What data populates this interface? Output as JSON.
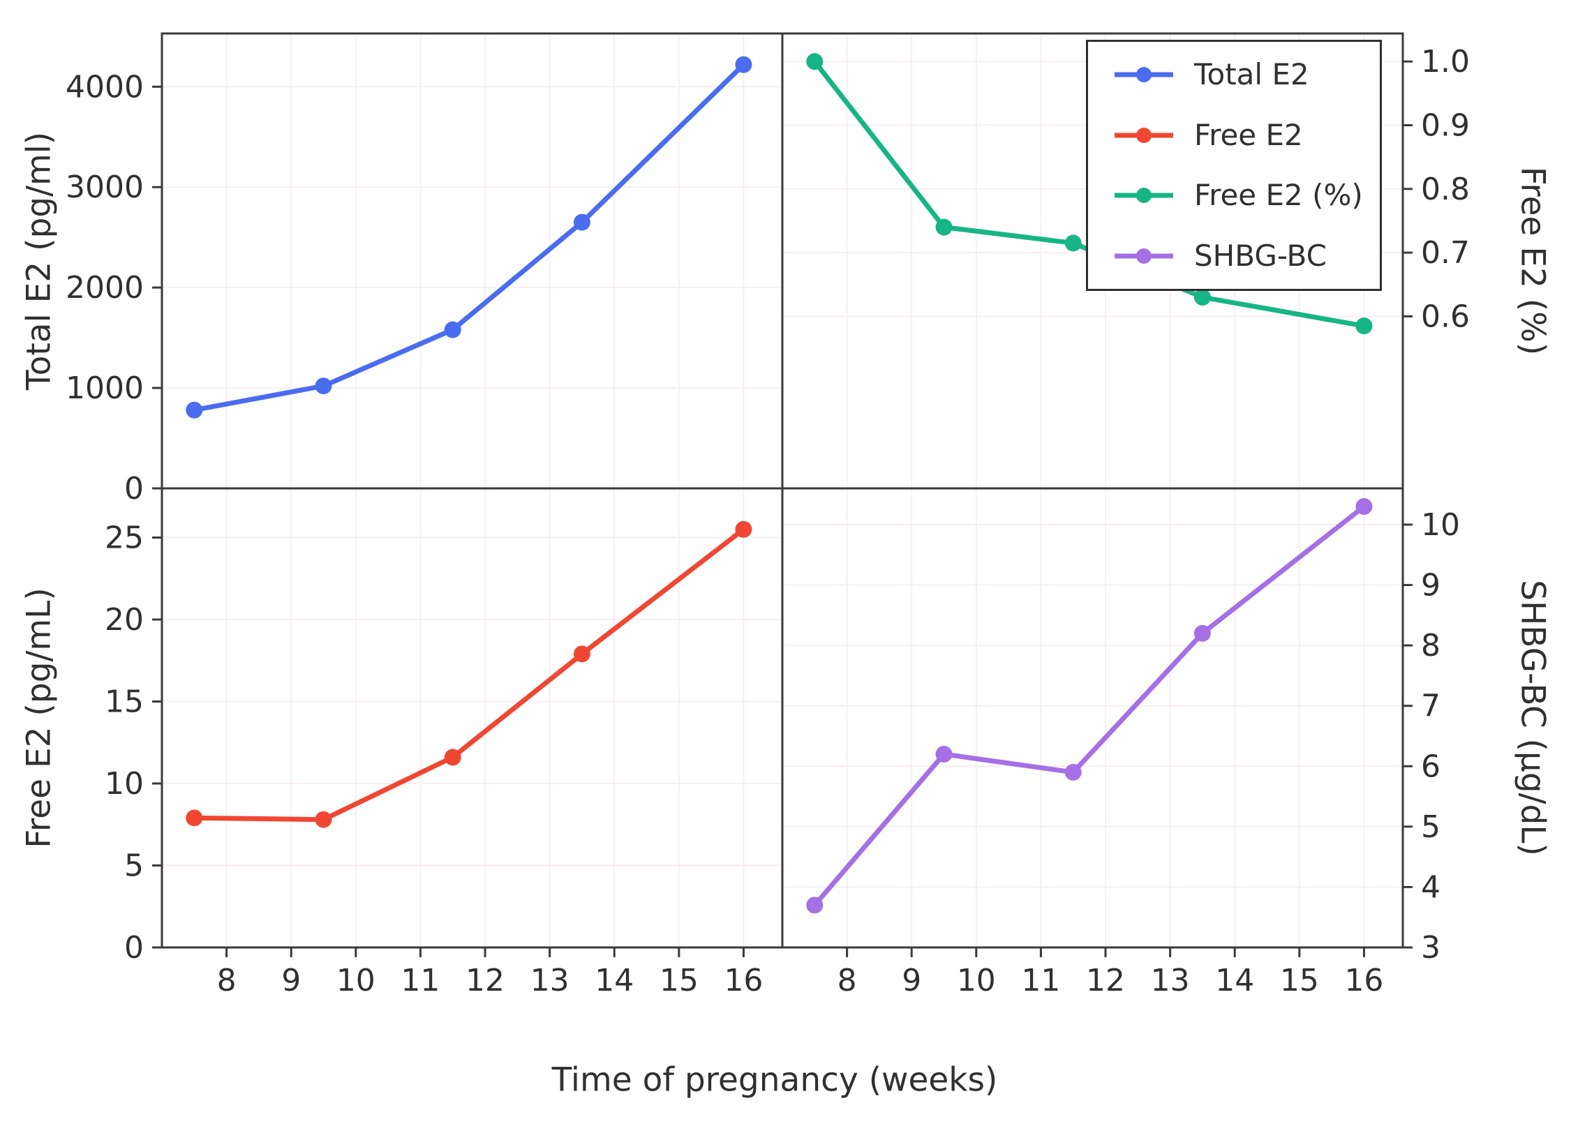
{
  "figure": {
    "xlabel": "Time of pregnancy (weeks)",
    "xlim": [
      7.0,
      16.6
    ],
    "x_ticks": [
      "8",
      "9",
      "10",
      "11",
      "12",
      "13",
      "14",
      "15",
      "16"
    ],
    "background": "#ffffff",
    "grid_color": "#f8eef4",
    "axis_color": "#3a3a3a",
    "text_color": "#303030"
  },
  "legend": {
    "position": "top-right-panel",
    "entries": [
      {
        "label": "Total E2",
        "color": "#4a6cf0"
      },
      {
        "label": "Free E2",
        "color": "#f04732"
      },
      {
        "label": "Free E2 (%)",
        "color": "#17b586"
      },
      {
        "label": "SHBG-BC",
        "color": "#a56fe5"
      }
    ]
  },
  "chart_data": [
    {
      "type": "line",
      "series_name": "Total E2",
      "panel": "top-left",
      "axis_side": "left",
      "ylabel": "Total E2 (pg/ml)",
      "color": "#4a6cf0",
      "x": [
        7.5,
        9.5,
        11.5,
        13.5,
        16
      ],
      "values": [
        780,
        1020,
        1580,
        2650,
        4220
      ],
      "ylim": [
        0,
        4530
      ],
      "y_ticks": [
        "0",
        "1000",
        "2000",
        "3000",
        "4000"
      ]
    },
    {
      "type": "line",
      "series_name": "Free E2 (%)",
      "panel": "top-right",
      "axis_side": "right",
      "ylabel": "Free E2 (%)",
      "color": "#17b586",
      "x": [
        7.5,
        9.5,
        11.5,
        13.5,
        16
      ],
      "values": [
        1.0,
        0.74,
        0.715,
        0.63,
        0.585
      ],
      "ylim": [
        0.33,
        1.044
      ],
      "y_ticks": [
        "0.6",
        "0.7",
        "0.8",
        "0.9",
        "1.0"
      ]
    },
    {
      "type": "line",
      "series_name": "Free E2",
      "panel": "bottom-left",
      "axis_side": "left",
      "ylabel": "Free E2 (pg/mL)",
      "color": "#f04732",
      "x": [
        7.5,
        9.5,
        11.5,
        13.5,
        16
      ],
      "values": [
        7.9,
        7.8,
        11.6,
        17.9,
        25.5
      ],
      "ylim": [
        0,
        28
      ],
      "y_ticks": [
        "0",
        "5",
        "10",
        "15",
        "20",
        "25"
      ]
    },
    {
      "type": "line",
      "series_name": "SHBG-BC",
      "panel": "bottom-right",
      "axis_side": "right",
      "ylabel": "SHBG-BC (µg/dL)",
      "color": "#a56fe5",
      "x": [
        7.5,
        9.5,
        11.5,
        13.5,
        16
      ],
      "values": [
        3.7,
        6.2,
        5.9,
        8.2,
        10.3
      ],
      "ylim": [
        3,
        10.6
      ],
      "y_ticks": [
        "3",
        "4",
        "5",
        "6",
        "7",
        "8",
        "9",
        "10"
      ]
    }
  ]
}
